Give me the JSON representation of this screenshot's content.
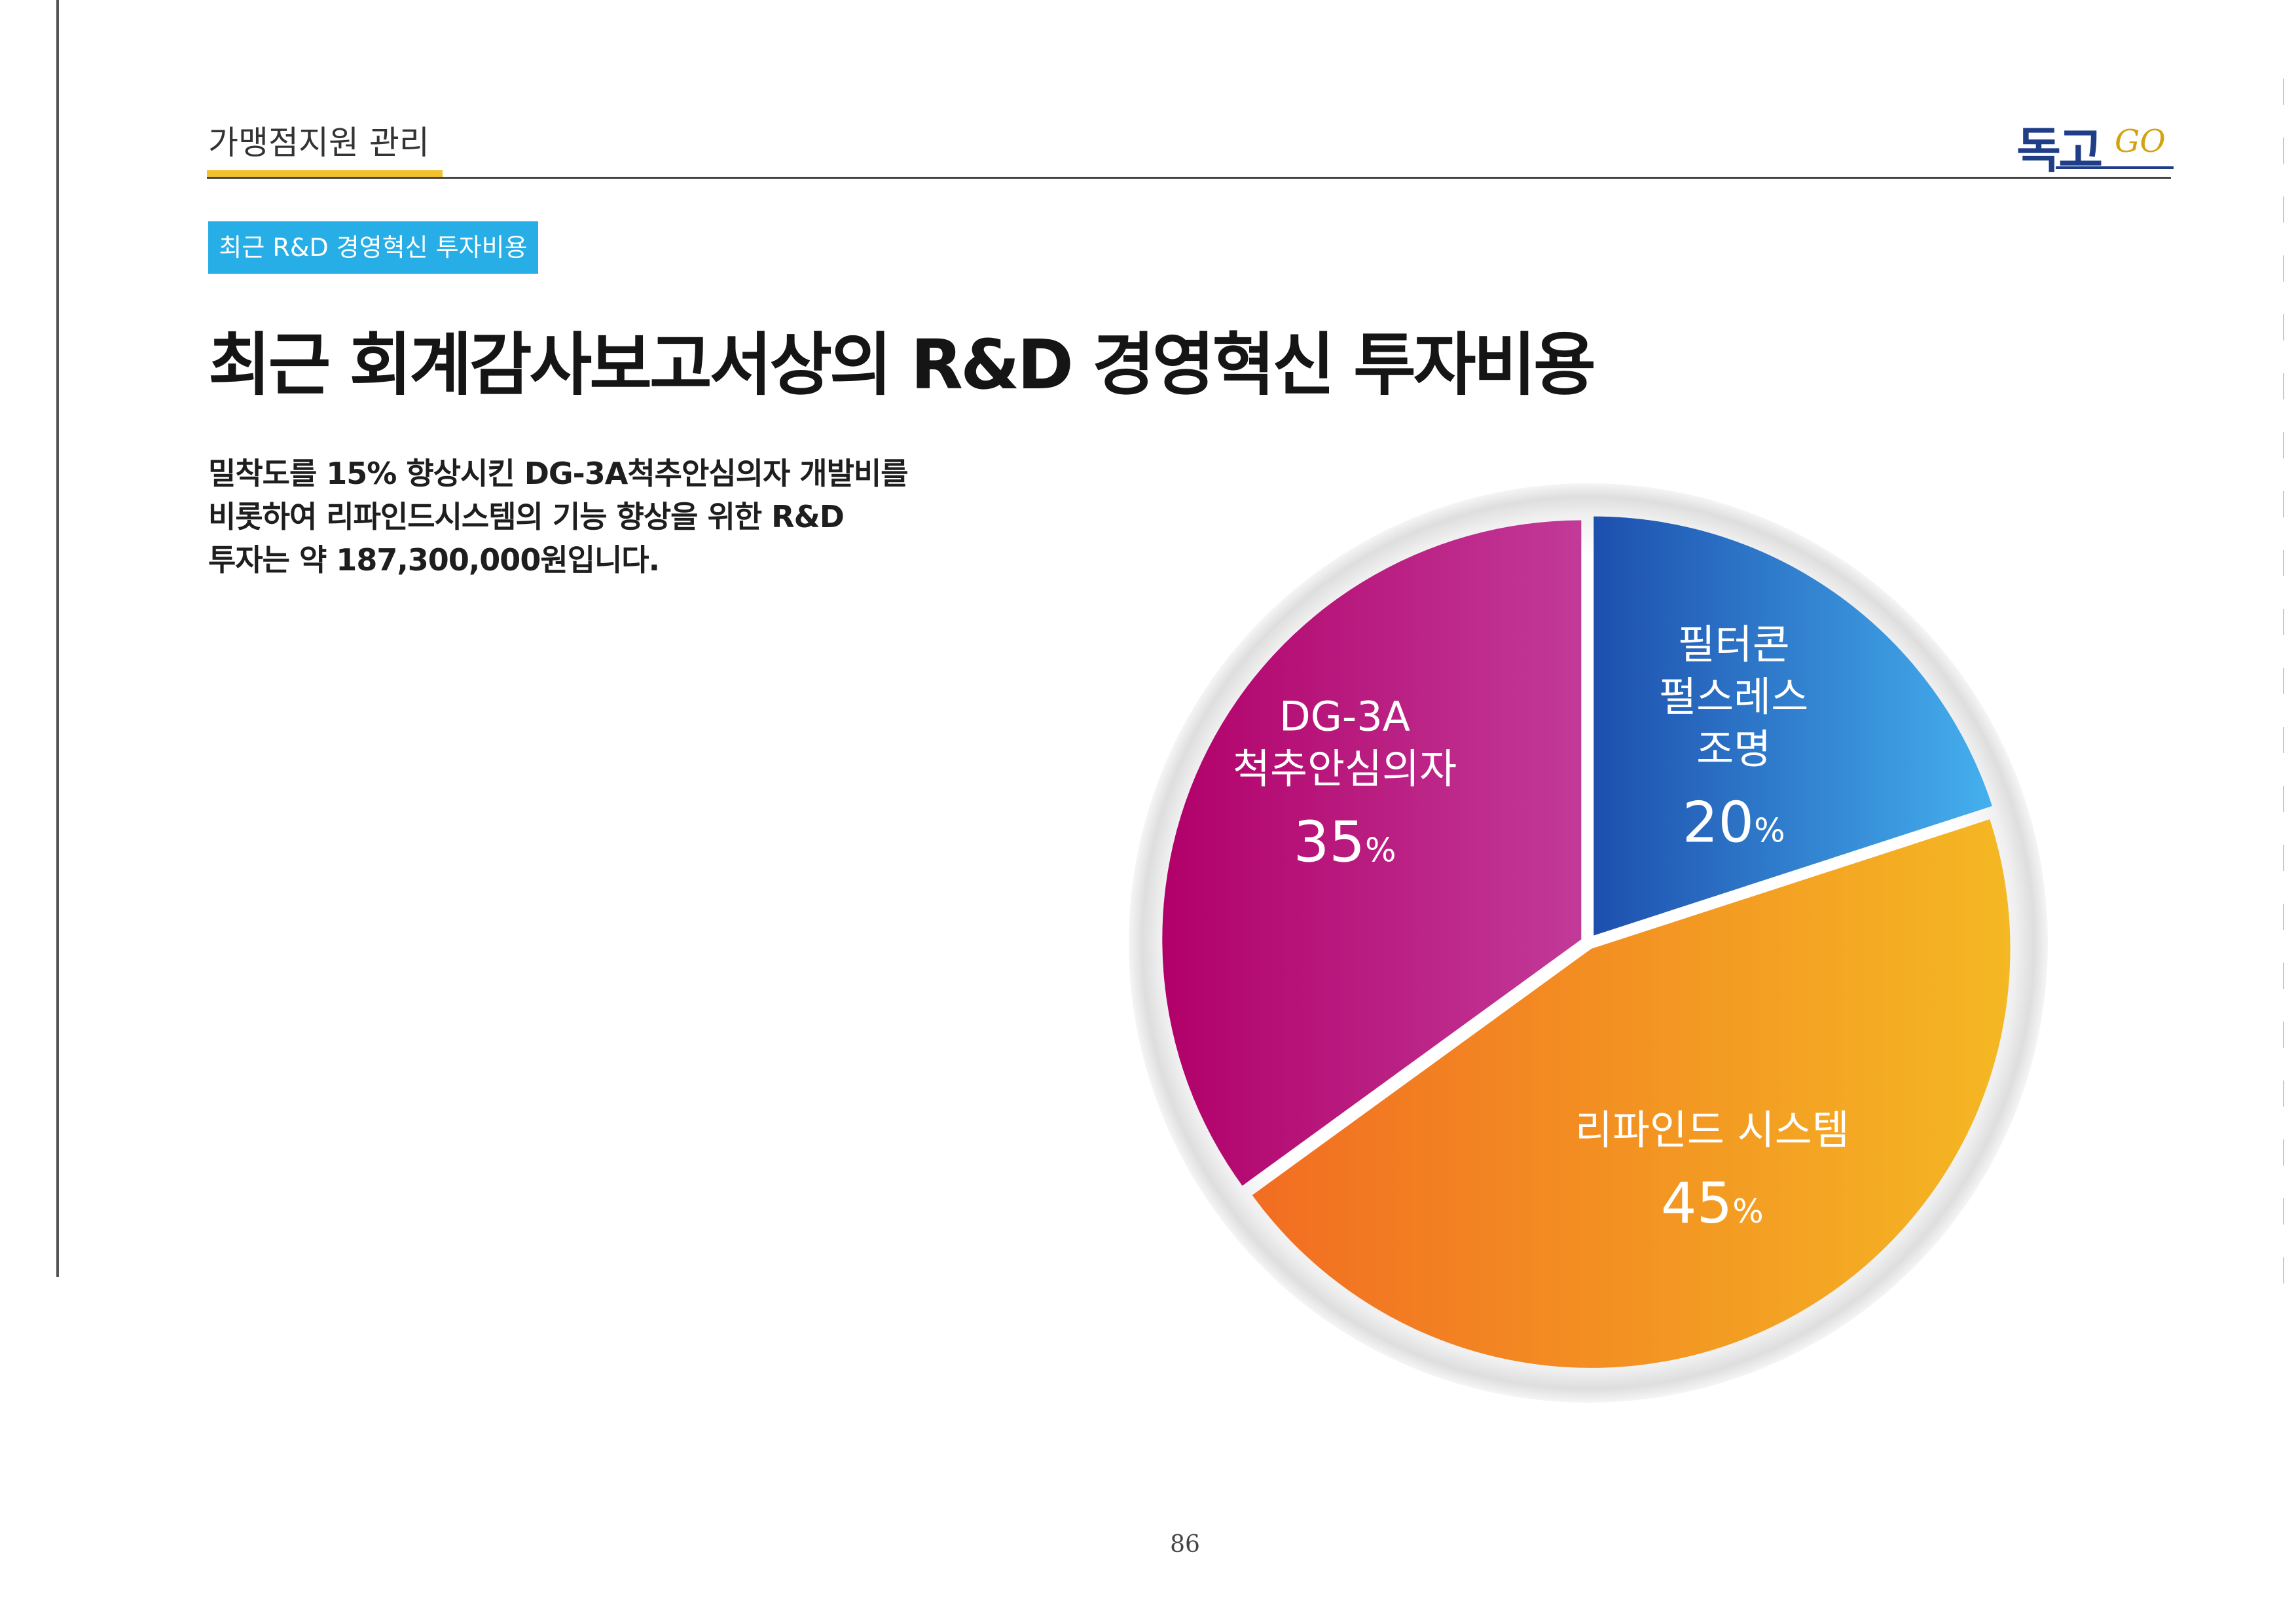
{
  "header": {
    "section_label": "가맹점지원 관리",
    "logo_korean": "독고",
    "logo_latin": "GO"
  },
  "tag_label": "최근 R&D 경영혁신 투자비용",
  "headline": "최근 회계감사보고서상의 R&D 경영혁신 투자비용",
  "description": [
    "밀착도를 15% 향상시킨 DG-3A척추안심의자 개발비를",
    "비롯하여 리파인드시스템의 기능 향상을 위한 R&D",
    "투자는 약 187,300,000원입니다."
  ],
  "chart_data": {
    "type": "pie",
    "slices": [
      {
        "label_lines": [
          "필터콘",
          "펄스레스",
          "조명"
        ],
        "value": 20,
        "value_text": "20",
        "unit": "%",
        "color_from": "#1d4fae",
        "color_to": "#45b0ee"
      },
      {
        "label_lines": [
          "리파인드 시스템"
        ],
        "value": 45,
        "value_text": "45",
        "unit": "%",
        "color_from": "#f26d22",
        "color_to": "#f4b823"
      },
      {
        "label_lines": [
          "DG-3A",
          "척추안심의자"
        ],
        "value": 35,
        "value_text": "35",
        "unit": "%",
        "color_from": "#b10069",
        "color_to": "#c23a98"
      }
    ]
  },
  "page_number": "86"
}
